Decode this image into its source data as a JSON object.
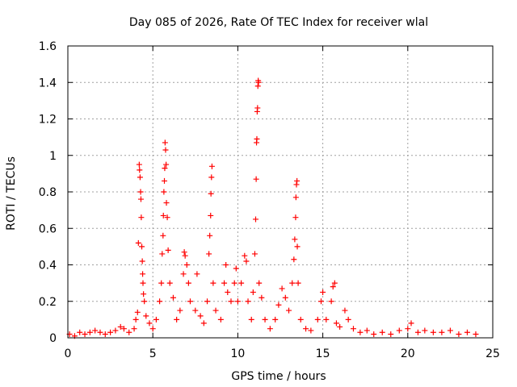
{
  "chart_data": {
    "type": "scatter",
    "title": "Day 085 of 2026, Rate Of TEC Index for receiver wlal",
    "xlabel": "GPS time / hours",
    "ylabel": "ROTI / TECUs",
    "xlim": [
      0,
      25
    ],
    "ylim": [
      0,
      1.6
    ],
    "xticks": [
      0,
      5,
      10,
      15,
      20,
      25
    ],
    "xtick_labels": [
      "0",
      "5",
      "10",
      "15",
      "20",
      "25"
    ],
    "yticks": [
      0,
      0.2,
      0.4,
      0.6,
      0.8,
      1.0,
      1.2,
      1.4,
      1.6
    ],
    "ytick_labels": [
      "0",
      "0.2",
      "0.4",
      "0.6",
      "0.8",
      "1",
      "1.2",
      "1.4",
      "1.6"
    ],
    "grid": true,
    "marker": "+",
    "color": "#ff0000",
    "series": [
      {
        "name": "ROTI",
        "points": [
          [
            0.1,
            0.02
          ],
          [
            0.4,
            0.01
          ],
          [
            0.7,
            0.03
          ],
          [
            1.0,
            0.02
          ],
          [
            1.3,
            0.03
          ],
          [
            1.6,
            0.04
          ],
          [
            1.9,
            0.03
          ],
          [
            2.2,
            0.02
          ],
          [
            2.5,
            0.03
          ],
          [
            2.8,
            0.04
          ],
          [
            3.1,
            0.06
          ],
          [
            3.3,
            0.05
          ],
          [
            3.6,
            0.03
          ],
          [
            3.9,
            0.05
          ],
          [
            4.0,
            0.1
          ],
          [
            4.1,
            0.14
          ],
          [
            4.15,
            0.52
          ],
          [
            4.2,
            0.95
          ],
          [
            4.22,
            0.92
          ],
          [
            4.25,
            0.88
          ],
          [
            4.28,
            0.8
          ],
          [
            4.3,
            0.76
          ],
          [
            4.32,
            0.66
          ],
          [
            4.35,
            0.5
          ],
          [
            4.38,
            0.42
          ],
          [
            4.4,
            0.35
          ],
          [
            4.42,
            0.3
          ],
          [
            4.45,
            0.24
          ],
          [
            4.5,
            0.2
          ],
          [
            4.6,
            0.12
          ],
          [
            4.8,
            0.08
          ],
          [
            5.0,
            0.05
          ],
          [
            5.2,
            0.1
          ],
          [
            5.4,
            0.2
          ],
          [
            5.5,
            0.3
          ],
          [
            5.55,
            0.46
          ],
          [
            5.6,
            0.56
          ],
          [
            5.62,
            0.67
          ],
          [
            5.65,
            0.8
          ],
          [
            5.68,
            0.86
          ],
          [
            5.7,
            0.93
          ],
          [
            5.72,
            1.07
          ],
          [
            5.75,
            1.03
          ],
          [
            5.78,
            0.95
          ],
          [
            5.8,
            0.74
          ],
          [
            5.85,
            0.66
          ],
          [
            5.9,
            0.48
          ],
          [
            6.0,
            0.3
          ],
          [
            6.2,
            0.22
          ],
          [
            6.4,
            0.1
          ],
          [
            6.6,
            0.15
          ],
          [
            6.8,
            0.35
          ],
          [
            6.85,
            0.47
          ],
          [
            6.9,
            0.45
          ],
          [
            7.0,
            0.4
          ],
          [
            7.1,
            0.3
          ],
          [
            7.2,
            0.2
          ],
          [
            7.5,
            0.15
          ],
          [
            7.6,
            0.35
          ],
          [
            7.8,
            0.12
          ],
          [
            8.0,
            0.08
          ],
          [
            8.2,
            0.2
          ],
          [
            8.3,
            0.46
          ],
          [
            8.35,
            0.56
          ],
          [
            8.4,
            0.67
          ],
          [
            8.42,
            0.79
          ],
          [
            8.45,
            0.88
          ],
          [
            8.48,
            0.94
          ],
          [
            8.55,
            0.3
          ],
          [
            8.7,
            0.15
          ],
          [
            9.0,
            0.1
          ],
          [
            9.2,
            0.3
          ],
          [
            9.3,
            0.4
          ],
          [
            9.4,
            0.25
          ],
          [
            9.6,
            0.2
          ],
          [
            9.8,
            0.3
          ],
          [
            9.9,
            0.38
          ],
          [
            10.0,
            0.2
          ],
          [
            10.2,
            0.3
          ],
          [
            10.4,
            0.45
          ],
          [
            10.5,
            0.42
          ],
          [
            10.6,
            0.2
          ],
          [
            10.8,
            0.1
          ],
          [
            10.9,
            0.25
          ],
          [
            11.0,
            0.46
          ],
          [
            11.05,
            0.65
          ],
          [
            11.08,
            0.87
          ],
          [
            11.1,
            1.07
          ],
          [
            11.12,
            1.09
          ],
          [
            11.14,
            1.24
          ],
          [
            11.16,
            1.26
          ],
          [
            11.18,
            1.38
          ],
          [
            11.2,
            1.41
          ],
          [
            11.22,
            1.4
          ],
          [
            11.25,
            0.3
          ],
          [
            11.4,
            0.22
          ],
          [
            11.6,
            0.1
          ],
          [
            11.9,
            0.05
          ],
          [
            12.2,
            0.1
          ],
          [
            12.4,
            0.18
          ],
          [
            12.6,
            0.27
          ],
          [
            12.8,
            0.22
          ],
          [
            13.0,
            0.15
          ],
          [
            13.2,
            0.3
          ],
          [
            13.3,
            0.43
          ],
          [
            13.35,
            0.54
          ],
          [
            13.4,
            0.66
          ],
          [
            13.42,
            0.77
          ],
          [
            13.45,
            0.84
          ],
          [
            13.48,
            0.86
          ],
          [
            13.5,
            0.5
          ],
          [
            13.55,
            0.3
          ],
          [
            13.7,
            0.1
          ],
          [
            14.0,
            0.05
          ],
          [
            14.3,
            0.04
          ],
          [
            14.7,
            0.1
          ],
          [
            14.9,
            0.2
          ],
          [
            15.0,
            0.25
          ],
          [
            15.2,
            0.1
          ],
          [
            15.5,
            0.2
          ],
          [
            15.6,
            0.28
          ],
          [
            15.7,
            0.3
          ],
          [
            15.8,
            0.08
          ],
          [
            16.0,
            0.06
          ],
          [
            16.3,
            0.15
          ],
          [
            16.5,
            0.1
          ],
          [
            16.8,
            0.05
          ],
          [
            17.2,
            0.03
          ],
          [
            17.6,
            0.04
          ],
          [
            18.0,
            0.02
          ],
          [
            18.5,
            0.03
          ],
          [
            19.0,
            0.02
          ],
          [
            19.5,
            0.04
          ],
          [
            20.0,
            0.05
          ],
          [
            20.2,
            0.08
          ],
          [
            20.6,
            0.03
          ],
          [
            21.0,
            0.04
          ],
          [
            21.5,
            0.03
          ],
          [
            22.0,
            0.03
          ],
          [
            22.5,
            0.04
          ],
          [
            23.0,
            0.02
          ],
          [
            23.5,
            0.03
          ],
          [
            24.0,
            0.02
          ]
        ]
      }
    ]
  }
}
